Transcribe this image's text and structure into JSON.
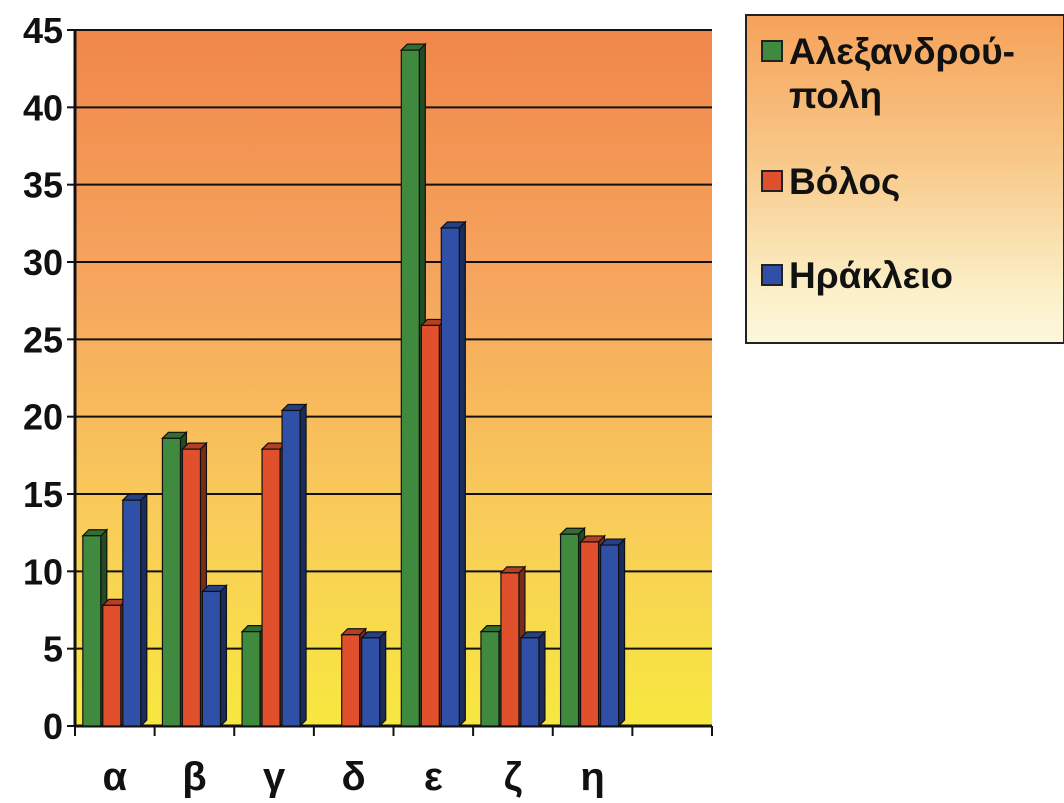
{
  "chart_data": {
    "type": "bar",
    "categories": [
      "α",
      "β",
      "γ",
      "δ",
      "ε",
      "ζ",
      "η"
    ],
    "series": [
      {
        "name": "Αλεξανδρού-πολη",
        "color": "#3f8a3f",
        "values": [
          12.3,
          18.6,
          6.1,
          0,
          43.7,
          6.1,
          12.4
        ]
      },
      {
        "name": "Βόλος",
        "color": "#e0502d",
        "values": [
          7.8,
          17.9,
          17.9,
          5.9,
          25.9,
          9.9,
          11.9
        ]
      },
      {
        "name": "Ηράκλειο",
        "color": "#3050a8",
        "values": [
          14.6,
          8.7,
          20.4,
          5.7,
          32.2,
          5.7,
          11.7
        ]
      }
    ],
    "ylim": [
      0,
      45
    ],
    "yticks": [
      0,
      5,
      10,
      15,
      20,
      25,
      30,
      35,
      40,
      45
    ],
    "grid": true,
    "legend": "right",
    "plot_background": [
      "#f0874a",
      "#f6a45e",
      "#f9cc5a",
      "#f7e83f"
    ],
    "title": "",
    "xlabel": "",
    "ylabel": ""
  }
}
